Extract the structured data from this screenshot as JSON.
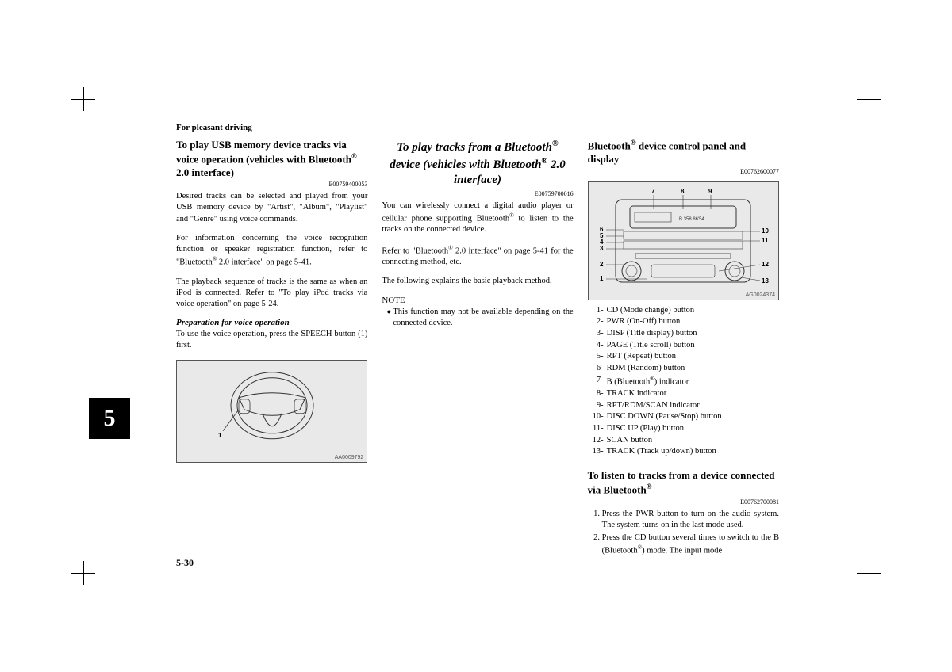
{
  "section": "For pleasant driving",
  "page_number": "5-30",
  "side_tab": "5",
  "col1": {
    "heading": "To play USB memory device tracks via voice operation (vehicles with Bluetooth® 2.0 interface)",
    "ref": "E00759400053",
    "p1": "Desired tracks can be selected and played from your USB memory device by \"Artist\", \"Album\", \"Playlist\" and \"Genre\" using voice commands.",
    "p2": "For information concerning the voice recognition function or speaker registration function, refer to \"Bluetooth® 2.0 interface\" on page 5-41.",
    "p3": "The playback sequence of tracks is the same as when an iPod is connected. Refer to \"To play iPod tracks via voice operation\" on page 5-24.",
    "prep_title": "Preparation for voice operation",
    "prep_body": "To use the voice operation, press the SPEECH button (1) first.",
    "fig_code": "AA0009792",
    "fig_callout": "1"
  },
  "col2": {
    "heading": "To play tracks from a Bluetooth® device (vehicles with Bluetooth® 2.0 interface)",
    "ref": "E00759700016",
    "p1": "You can wirelessly connect a digital audio player or cellular phone supporting Bluetooth® to listen to the tracks on the connected device.",
    "p2": "Refer to \"Bluetooth® 2.0 interface\" on page 5-41 for the connecting method, etc.",
    "p3": "The following explains the basic playback method.",
    "note_label": "NOTE",
    "note_item": "This function may not be available depending on the connected device."
  },
  "col3": {
    "heading": "Bluetooth® device control panel and display",
    "ref": "E00762600077",
    "fig_code": "AG0024374",
    "legend": [
      {
        "n": "1-",
        "t": "CD (Mode change) button"
      },
      {
        "n": "2-",
        "t": "PWR (On-Off) button"
      },
      {
        "n": "3-",
        "t": "DISP (Title display) button"
      },
      {
        "n": "4-",
        "t": "PAGE (Title scroll) button"
      },
      {
        "n": "5-",
        "t": "RPT (Repeat) button"
      },
      {
        "n": "6-",
        "t": "RDM (Random) button"
      },
      {
        "n": "7-",
        "t": "B (Bluetooth®) indicator"
      },
      {
        "n": "8-",
        "t": "TRACK indicator"
      },
      {
        "n": "9-",
        "t": "RPT/RDM/SCAN indicator"
      },
      {
        "n": "10-",
        "t": "DISC DOWN (Pause/Stop) button"
      },
      {
        "n": "11-",
        "t": "DISC UP (Play) button"
      },
      {
        "n": "12-",
        "t": "SCAN button"
      },
      {
        "n": "13-",
        "t": "TRACK (Track up/down) button"
      }
    ],
    "heading2": "To listen to tracks from a device connected via Bluetooth®",
    "ref2": "E00762700081",
    "steps": [
      "Press the PWR button to turn on the audio system. The system turns on in the last mode used.",
      "Press the CD button several times to switch to the B (Bluetooth®) mode. The input mode"
    ],
    "callouts_left": [
      "6",
      "5",
      "4",
      "3",
      "2",
      "1"
    ],
    "callouts_top": [
      "7",
      "8",
      "9"
    ],
    "callouts_right": [
      "10",
      "11",
      "12",
      "13"
    ]
  }
}
